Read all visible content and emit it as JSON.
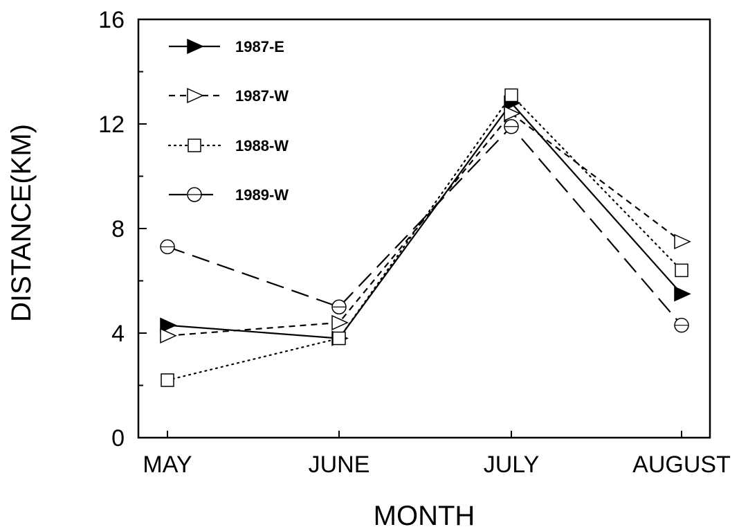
{
  "chart_data": {
    "type": "line",
    "title": "",
    "xlabel": "MONTH",
    "ylabel": "DISTANCE(KM)",
    "categories": [
      "MAY",
      "JUNE",
      "JULY",
      "AUGUST"
    ],
    "ylim": [
      0,
      16
    ],
    "yticks": [
      "0",
      "4",
      "8",
      "12",
      "16"
    ],
    "grid": false,
    "legend_position": "top-left",
    "series": [
      {
        "name": "1987-E",
        "values": [
          4.3,
          3.8,
          12.8,
          5.5
        ],
        "marker": "filled-triangle-right",
        "line_style": "solid"
      },
      {
        "name": "1987-W",
        "values": [
          3.9,
          4.4,
          12.4,
          7.5
        ],
        "marker": "open-triangle-right",
        "line_style": "short-dash"
      },
      {
        "name": "1988-W",
        "values": [
          2.2,
          3.8,
          13.1,
          6.4
        ],
        "marker": "open-square",
        "line_style": "dotted"
      },
      {
        "name": "1989-W",
        "values": [
          7.3,
          5.0,
          11.9,
          4.3
        ],
        "marker": "open-circle-bar",
        "line_style": "long-dash"
      }
    ]
  }
}
